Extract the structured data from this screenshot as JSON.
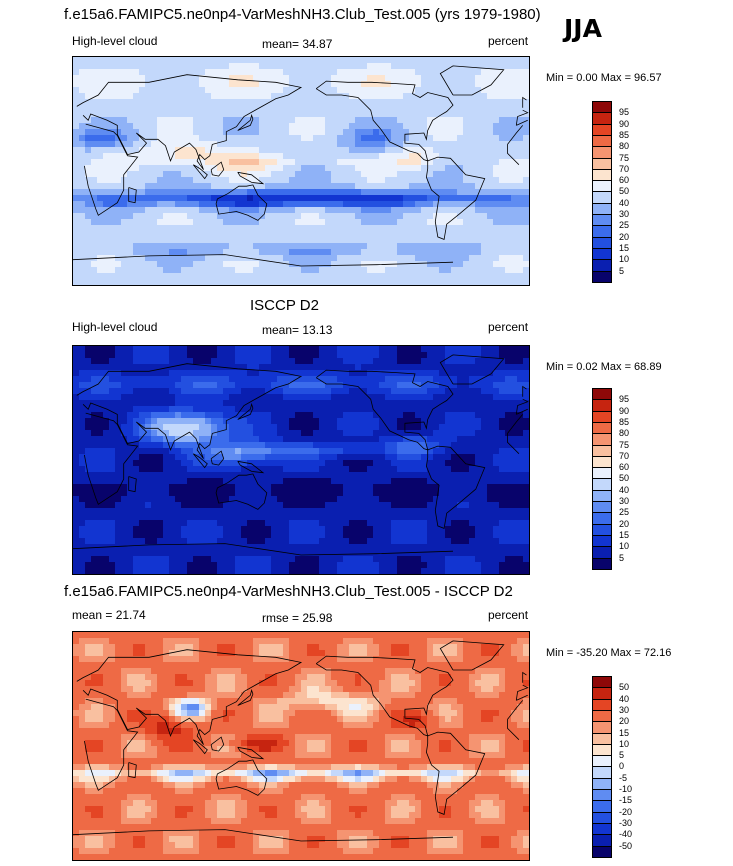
{
  "season": "JJA",
  "panels": [
    {
      "title": "f.e15a6.FAMIPC5.ne0np4-VarMeshNH3.Club_Test.005 (yrs 1979-1980)",
      "left_label": "High-level cloud",
      "center_label": "mean=  34.87",
      "right_label": "percent",
      "minmax": "Min =   0.00 Max =  96.57",
      "colorbar_labels": [
        "95",
        "90",
        "85",
        "80",
        "75",
        "70",
        "60",
        "50",
        "40",
        "30",
        "25",
        "20",
        "15",
        "10",
        "5"
      ],
      "field": "model"
    },
    {
      "title": "ISCCP D2",
      "left_label": "High-level cloud",
      "center_label": "mean=  13.13",
      "right_label": "percent",
      "minmax": "Min =   0.02 Max =  68.89",
      "colorbar_labels": [
        "95",
        "90",
        "85",
        "80",
        "75",
        "70",
        "60",
        "50",
        "40",
        "30",
        "25",
        "20",
        "15",
        "10",
        "5"
      ],
      "field": "obs"
    },
    {
      "title": "f.e15a6.FAMIPC5.ne0np4-VarMeshNH3.Club_Test.005 - ISCCP D2",
      "left_label": "mean =  21.74",
      "center_label": "rmse =  25.98",
      "right_label": "percent",
      "minmax": "Min = -35.20 Max =  72.16",
      "colorbar_labels": [
        "50",
        "40",
        "30",
        "20",
        "15",
        "10",
        "5",
        "0",
        "-5",
        "-10",
        "-15",
        "-20",
        "-30",
        "-40",
        "-50"
      ],
      "field": "diff"
    }
  ],
  "palette": [
    "#08036b",
    "#0a1fb0",
    "#1235d1",
    "#2350e0",
    "#3b6cec",
    "#5f8cf2",
    "#8fb2f7",
    "#c3d8fb",
    "#eaf1fd",
    "#fce4cf",
    "#f9c0a0",
    "#f59471",
    "#ee6a45",
    "#e44524",
    "#c62410",
    "#8e0808"
  ]
}
